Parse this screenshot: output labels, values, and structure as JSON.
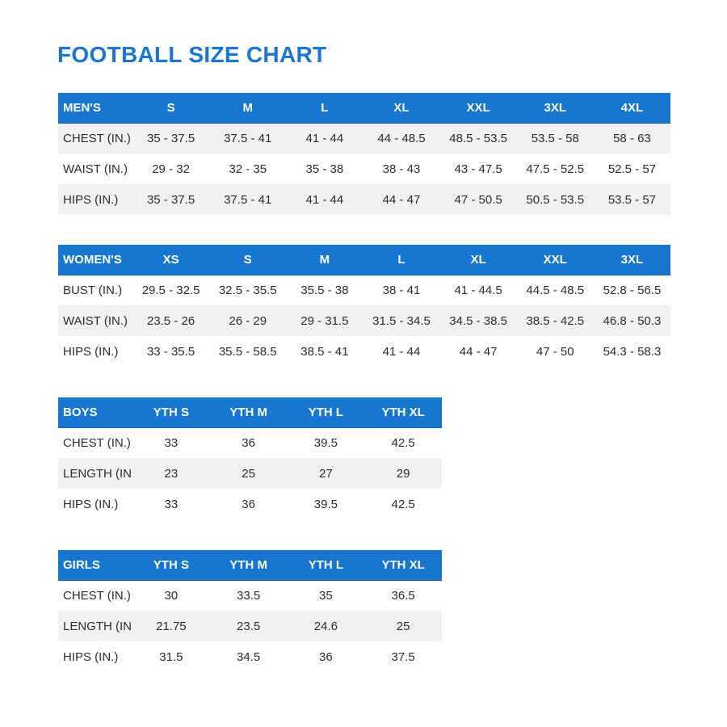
{
  "title": "FOOTBALL SIZE CHART",
  "colors": {
    "title_blue": "#1a76d2",
    "header_blue": "#1776cf",
    "stripe_gray": "#f1f1f2",
    "body_text": "#2d2d2d",
    "header_text": "#ffffff"
  },
  "tables": [
    {
      "name": "MEN'S",
      "columns": [
        "S",
        "M",
        "L",
        "XL",
        "XXL",
        "3XL",
        "4XL"
      ],
      "rows": [
        {
          "label": "CHEST (IN.)",
          "values": [
            "35 - 37.5",
            "37.5 - 41",
            "41 - 44",
            "44 - 48.5",
            "48.5 - 53.5",
            "53.5 - 58",
            "58 - 63"
          ]
        },
        {
          "label": "WAIST (IN.)",
          "values": [
            "29 - 32",
            "32 - 35",
            "35 - 38",
            "38 - 43",
            "43 - 47.5",
            "47.5 - 52.5",
            "52.5 - 57"
          ]
        },
        {
          "label": "HIPS (IN.)",
          "values": [
            "35 - 37.5",
            "37.5 - 41",
            "41 - 44",
            "44 - 47",
            "47 - 50.5",
            "50.5 - 53.5",
            "53.5 - 57"
          ]
        }
      ]
    },
    {
      "name": "WOMEN'S",
      "columns": [
        "XS",
        "S",
        "M",
        "L",
        "XL",
        "XXL",
        "3XL"
      ],
      "rows": [
        {
          "label": "BUST (IN.)",
          "values": [
            "29.5 - 32.5",
            "32.5 - 35.5",
            "35.5 - 38",
            "38 - 41",
            "41 - 44.5",
            "44.5 - 48.5",
            "52.8 - 56.5"
          ]
        },
        {
          "label": "WAIST (IN.)",
          "values": [
            "23.5 - 26",
            "26 - 29",
            "29 - 31.5",
            "31.5 - 34.5",
            "34.5 - 38.5",
            "38.5 - 42.5",
            "46.8 - 50.3"
          ]
        },
        {
          "label": "HIPS (IN.)",
          "values": [
            "33 - 35.5",
            "35.5 - 58.5",
            "38.5 - 41",
            "41 - 44",
            "44 - 47",
            "47 - 50",
            "54.3 - 58.3"
          ]
        }
      ]
    },
    {
      "name": "BOYS",
      "columns": [
        "YTH S",
        "YTH M",
        "YTH L",
        "YTH XL"
      ],
      "rows": [
        {
          "label": "CHEST (IN.)",
          "values": [
            "33",
            "36",
            "39.5",
            "42.5"
          ]
        },
        {
          "label": "LENGTH (IN.)",
          "values": [
            "23",
            "25",
            "27",
            "29"
          ]
        },
        {
          "label": "HIPS (IN.)",
          "values": [
            "33",
            "36",
            "39.5",
            "42.5"
          ]
        }
      ]
    },
    {
      "name": "GIRLS",
      "columns": [
        "YTH S",
        "YTH M",
        "YTH L",
        "YTH XL"
      ],
      "rows": [
        {
          "label": "CHEST (IN.)",
          "values": [
            "30",
            "33.5",
            "35",
            "36.5"
          ]
        },
        {
          "label": "LENGTH (IN.)",
          "values": [
            "21.75",
            "23.5",
            "24.6",
            "25"
          ]
        },
        {
          "label": "HIPS (IN.)",
          "values": [
            "31.5",
            "34.5",
            "36",
            "37.5"
          ]
        }
      ]
    }
  ]
}
